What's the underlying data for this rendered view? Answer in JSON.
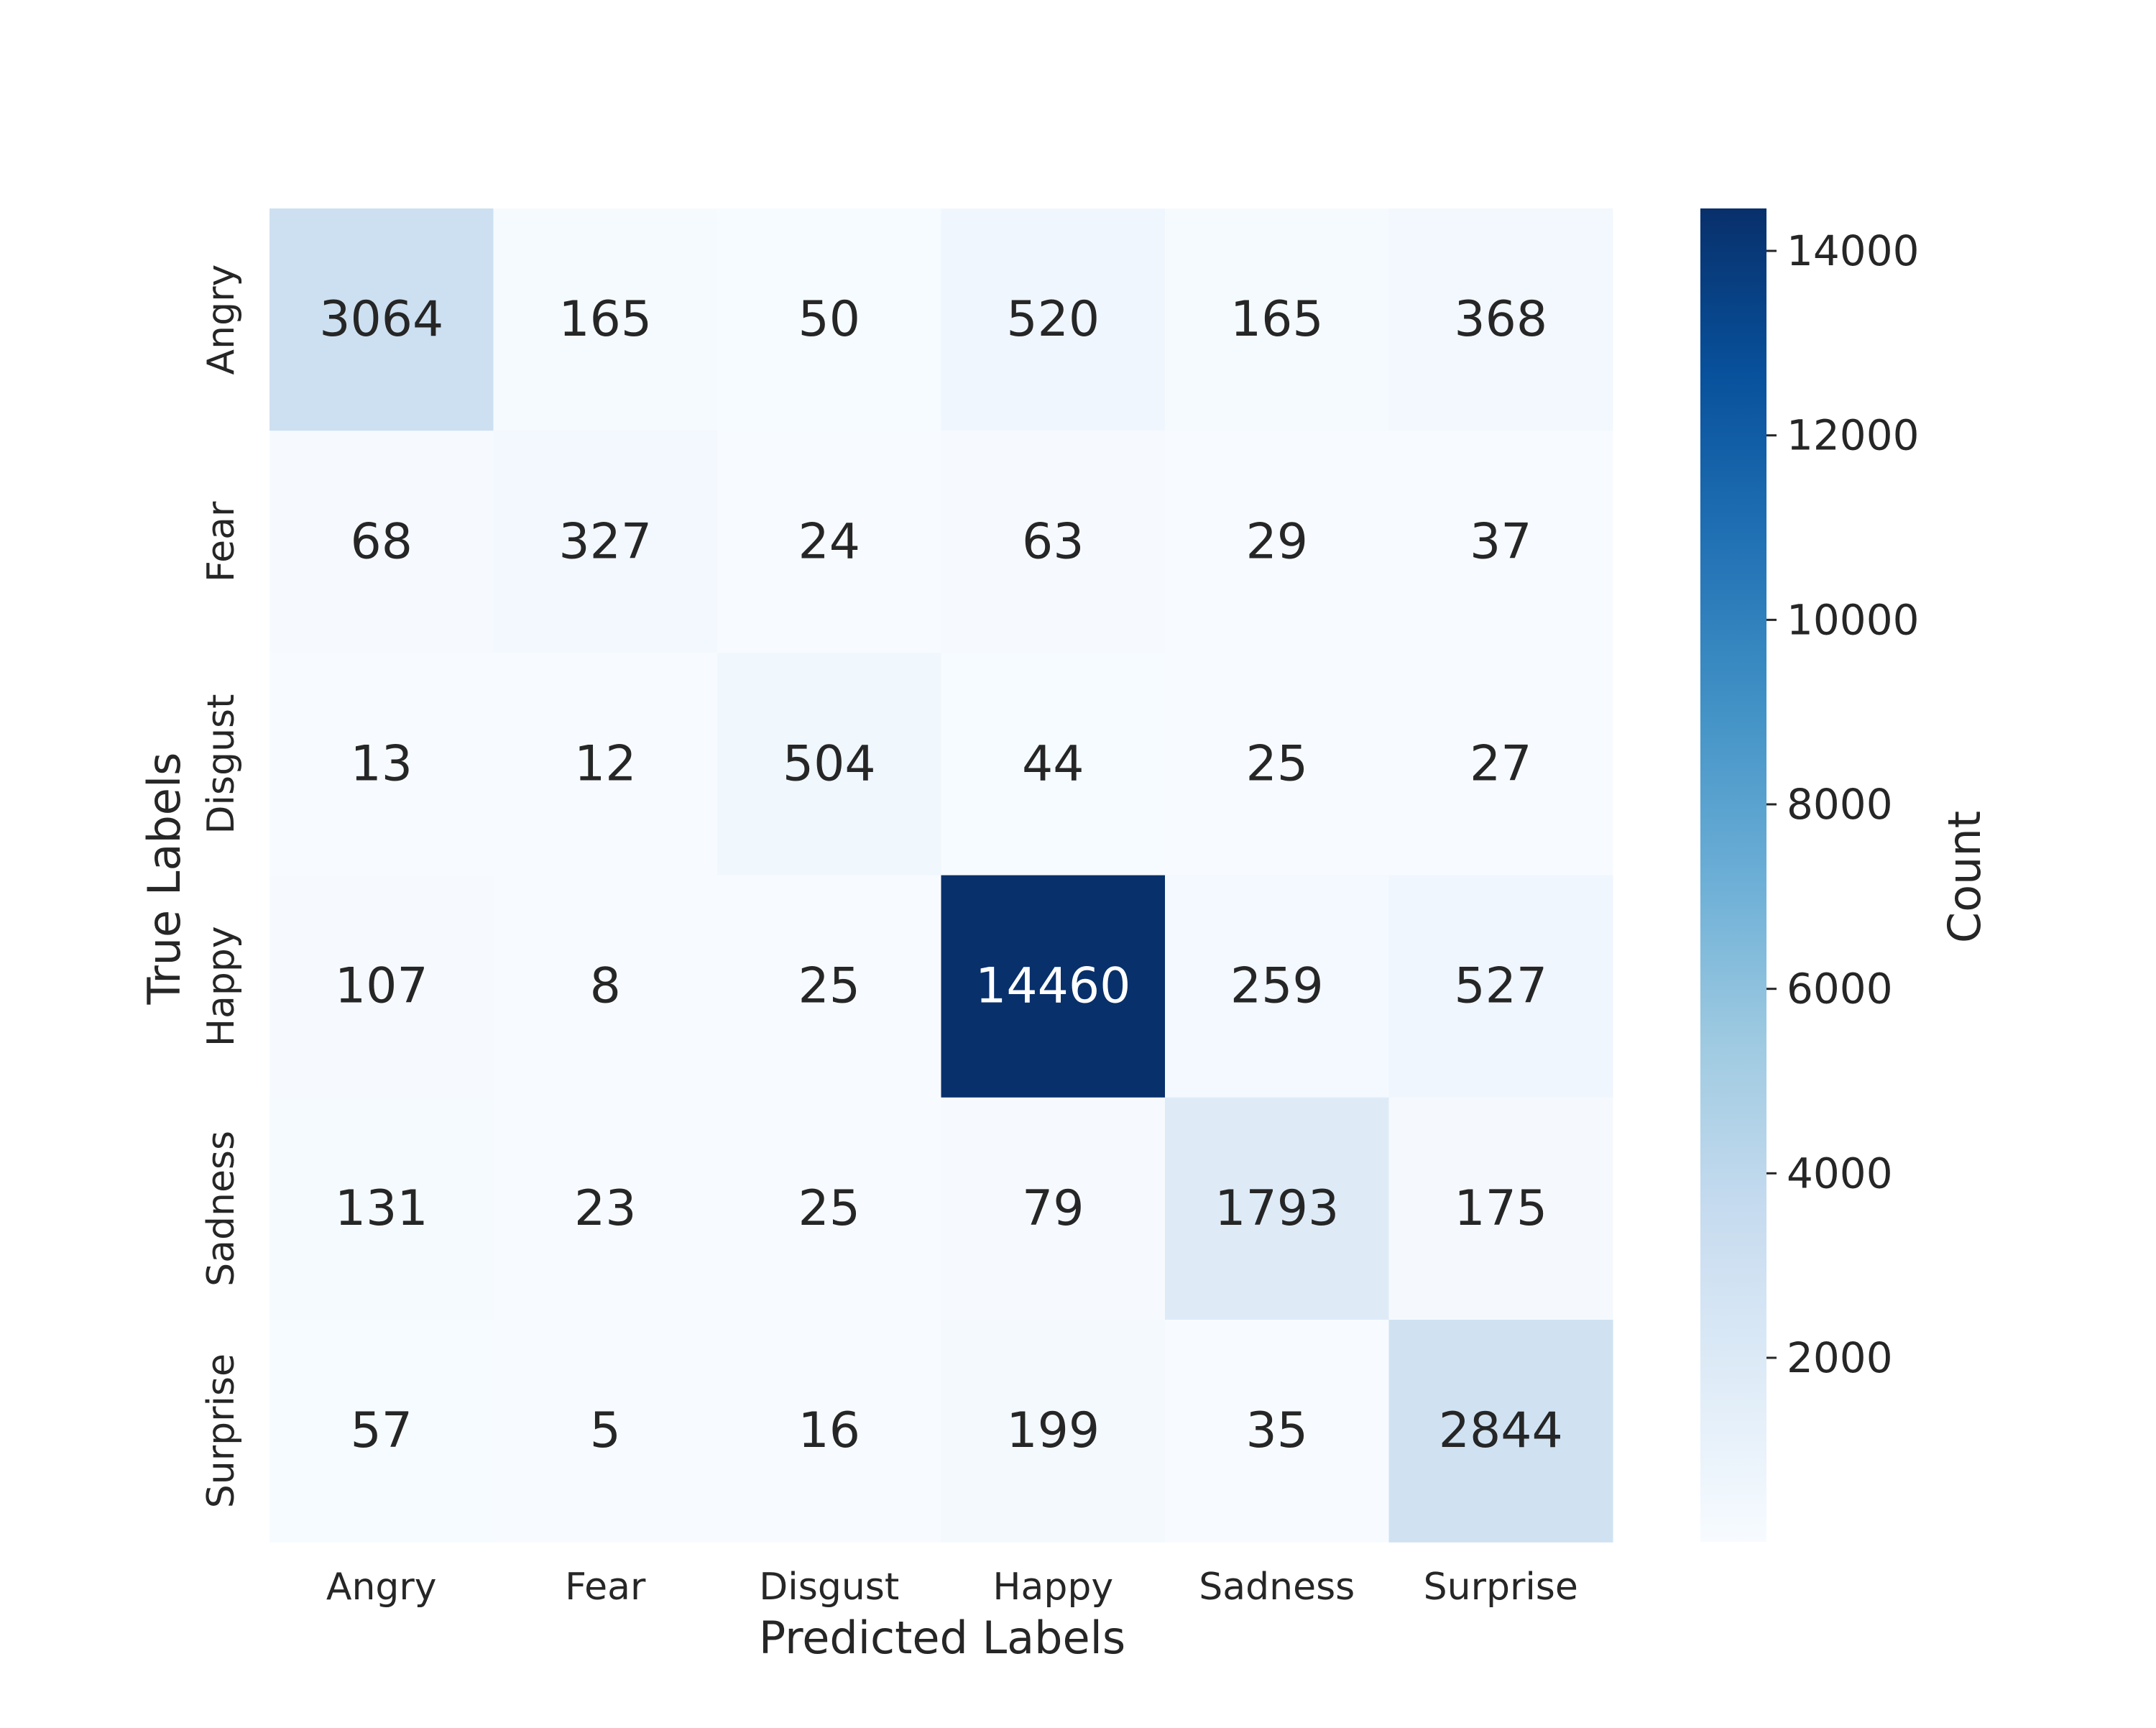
{
  "chart_data": {
    "type": "heatmap",
    "title": "",
    "xlabel": "Predicted Labels",
    "ylabel": "True Labels",
    "x_categories": [
      "Angry",
      "Fear",
      "Disgust",
      "Happy",
      "Sadness",
      "Surprise"
    ],
    "y_categories": [
      "Angry",
      "Fear",
      "Disgust",
      "Happy",
      "Sadness",
      "Surprise"
    ],
    "values": [
      [
        3064,
        165,
        50,
        520,
        165,
        368
      ],
      [
        68,
        327,
        24,
        63,
        29,
        37
      ],
      [
        13,
        12,
        504,
        44,
        25,
        27
      ],
      [
        107,
        8,
        25,
        14460,
        259,
        527
      ],
      [
        131,
        23,
        25,
        79,
        1793,
        175
      ],
      [
        57,
        5,
        16,
        199,
        35,
        2844
      ]
    ],
    "colorbar": {
      "label": "Count",
      "ticks": [
        2000,
        4000,
        6000,
        8000,
        10000,
        12000,
        14000
      ],
      "range": [
        5,
        14460
      ],
      "colormap": "Blues"
    },
    "grid": false
  }
}
